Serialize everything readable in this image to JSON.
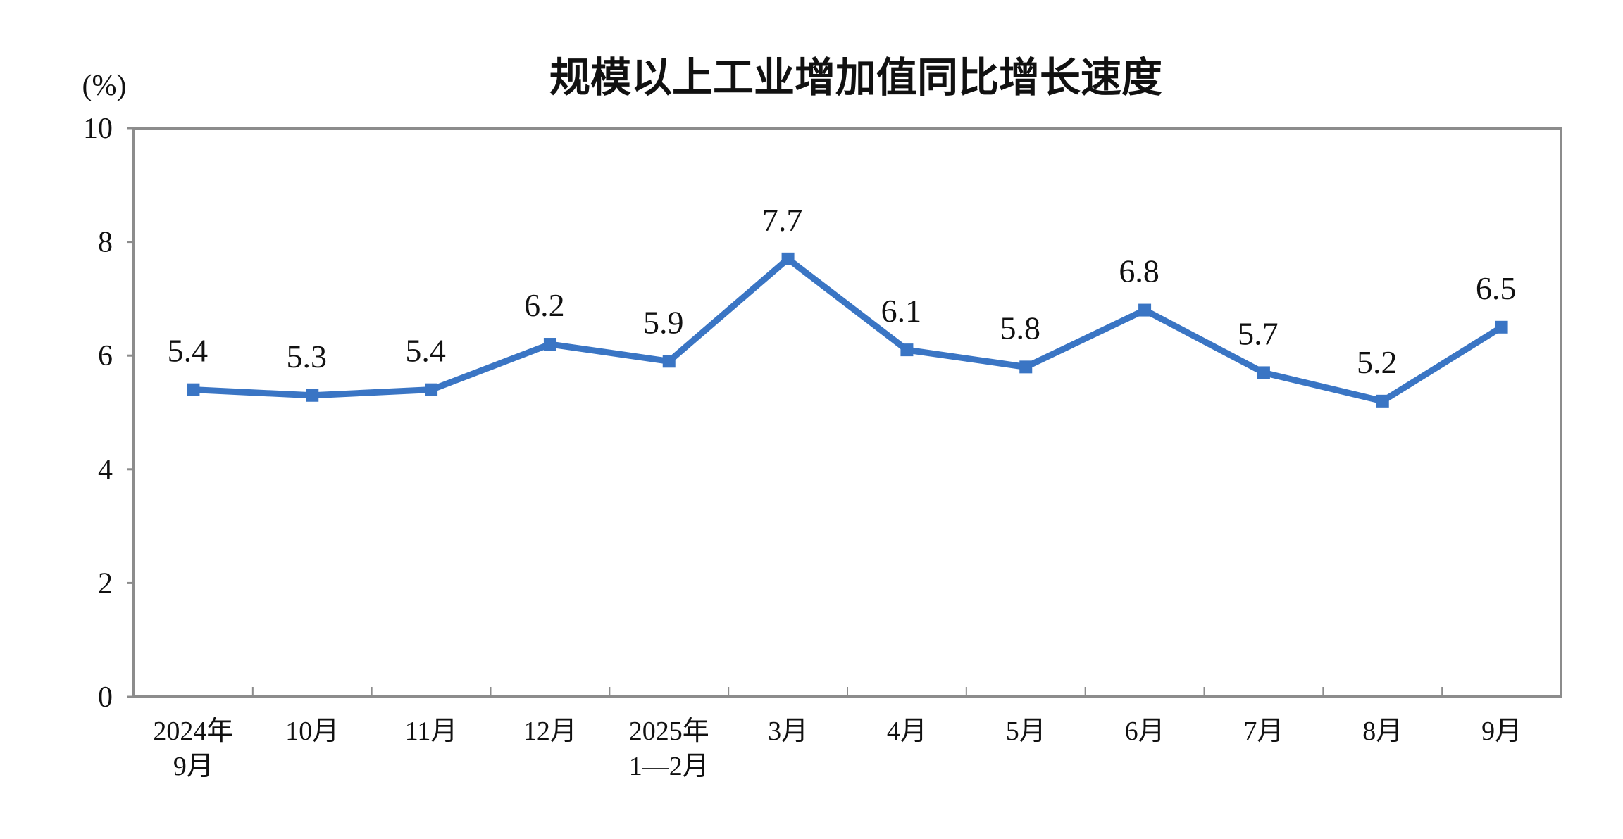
{
  "chart_data": {
    "type": "line",
    "title": "规模以上工业增加值同比增长速度",
    "ylabel": "(%)",
    "xlabel": "",
    "categories": [
      [
        "2024年",
        "9月"
      ],
      [
        "10月"
      ],
      [
        "11月"
      ],
      [
        "12月"
      ],
      [
        "2025年",
        "1—2月"
      ],
      [
        "3月"
      ],
      [
        "4月"
      ],
      [
        "5月"
      ],
      [
        "6月"
      ],
      [
        "7月"
      ],
      [
        "8月"
      ],
      [
        "9月"
      ]
    ],
    "values": [
      5.4,
      5.3,
      5.4,
      6.2,
      5.9,
      7.7,
      6.1,
      5.8,
      6.8,
      5.7,
      5.2,
      6.5
    ],
    "data_labels": [
      "5.4",
      "5.3",
      "5.4",
      "6.2",
      "5.9",
      "7.7",
      "6.1",
      "5.8",
      "6.8",
      "5.7",
      "5.2",
      "6.5"
    ],
    "ylim": [
      0,
      10
    ],
    "yticks": [
      "0",
      "2",
      "4",
      "6",
      "8",
      "10"
    ],
    "grid": false,
    "legend": "none",
    "colors": {
      "line": "#3a75c4",
      "marker": "#3a75c4",
      "frame": "#8c8c8c",
      "text": "#111111"
    }
  }
}
